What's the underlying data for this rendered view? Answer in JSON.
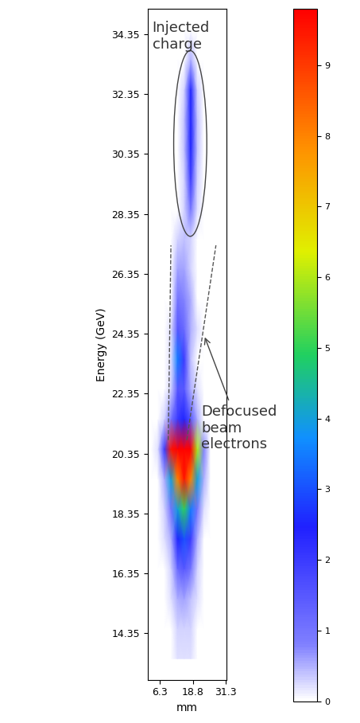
{
  "chart_data": {
    "type": "heatmap",
    "x_label": "mm",
    "y_label": "Energy (GeV)",
    "xlim": [
      1.7,
      31.6
    ],
    "ylim": [
      12.8,
      35.2
    ],
    "xticks": [
      6.3,
      18.8,
      31.3
    ],
    "yticks": [
      14.35,
      16.35,
      18.35,
      20.35,
      22.35,
      24.35,
      26.35,
      28.35,
      30.35,
      32.35,
      34.35
    ],
    "x": [
      3,
      5.5,
      8,
      10.5,
      13,
      15.5,
      18,
      20.5,
      23,
      25.5,
      28,
      30.5
    ],
    "y": [
      13.5,
      14.5,
      15.5,
      16.5,
      17.5,
      18.5,
      19.5,
      20.5,
      21.5,
      22.5,
      23.5,
      24.5,
      25.5,
      26.5,
      27.5,
      28.5,
      29.5,
      30.5,
      31.5,
      32.5,
      33.5,
      34.5
    ],
    "cells": [
      [
        0,
        0,
        0,
        0,
        0.2,
        0.2,
        0.2,
        0,
        0,
        0,
        0,
        0
      ],
      [
        0,
        0,
        0,
        0,
        0.3,
        0.3,
        0.3,
        0,
        0,
        0,
        0,
        0
      ],
      [
        0,
        0,
        0,
        0.2,
        0.5,
        0.6,
        0.4,
        0.2,
        0,
        0,
        0,
        0
      ],
      [
        0,
        0,
        0,
        0.3,
        1.2,
        1.5,
        1.0,
        0.3,
        0,
        0,
        0,
        0
      ],
      [
        0,
        0,
        0.2,
        0.5,
        2.5,
        3,
        2,
        0.5,
        0,
        0,
        0,
        0
      ],
      [
        0,
        0,
        0.3,
        1,
        4,
        5,
        3.5,
        1,
        0.2,
        0,
        0,
        0
      ],
      [
        0,
        0,
        0.5,
        4,
        8,
        9.5,
        8,
        4,
        0.5,
        0,
        0,
        0
      ],
      [
        0,
        0.2,
        2,
        9.5,
        9.8,
        9.8,
        9.8,
        6,
        0.8,
        0,
        0,
        0
      ],
      [
        0,
        0,
        0.3,
        1,
        2,
        2.5,
        1.5,
        0.5,
        0,
        0,
        0,
        0
      ],
      [
        0,
        0,
        0,
        0.3,
        1.5,
        1.5,
        0.5,
        0.2,
        0,
        0,
        0,
        0
      ],
      [
        0,
        0,
        0,
        0.2,
        3.5,
        2,
        0.4,
        0,
        0,
        0,
        0,
        0
      ],
      [
        0,
        0,
        0,
        0.2,
        1.5,
        1.2,
        0.5,
        0.2,
        0,
        0,
        0,
        0
      ],
      [
        0,
        0,
        0,
        0,
        1,
        0.8,
        0.5,
        0,
        0,
        0,
        0,
        0
      ],
      [
        0,
        0,
        0,
        0,
        0.6,
        0.6,
        0.3,
        0,
        0,
        0,
        0,
        0
      ],
      [
        0,
        0,
        0,
        0,
        0.3,
        0.4,
        0.3,
        0,
        0,
        0,
        0,
        0
      ],
      [
        0,
        0,
        0,
        0,
        0,
        0.3,
        1,
        0.2,
        0,
        0,
        0,
        0
      ],
      [
        0,
        0,
        0,
        0,
        0,
        0.3,
        2,
        0.3,
        0,
        0,
        0,
        0
      ],
      [
        0,
        0,
        0,
        0,
        0,
        0.4,
        2.5,
        0.4,
        0,
        0,
        0,
        0
      ],
      [
        0,
        0,
        0,
        0,
        0,
        0.4,
        2.5,
        0.4,
        0,
        0,
        0,
        0
      ],
      [
        0,
        0,
        0,
        0,
        0,
        0.3,
        2.5,
        0.3,
        0,
        0,
        0,
        0
      ],
      [
        0,
        0,
        0,
        0,
        0,
        0,
        0.5,
        0,
        0,
        0,
        0,
        0
      ],
      [
        0,
        0,
        0,
        0,
        0,
        0,
        0,
        0,
        0,
        0,
        0,
        0
      ]
    ],
    "color_range": [
      0,
      9.8
    ],
    "color_ticks": [
      0,
      1,
      2,
      3,
      4,
      5,
      6,
      7,
      8,
      9
    ],
    "annotations": [
      "Injected charge",
      "Defocused beam electrons"
    ],
    "grid": false
  }
}
